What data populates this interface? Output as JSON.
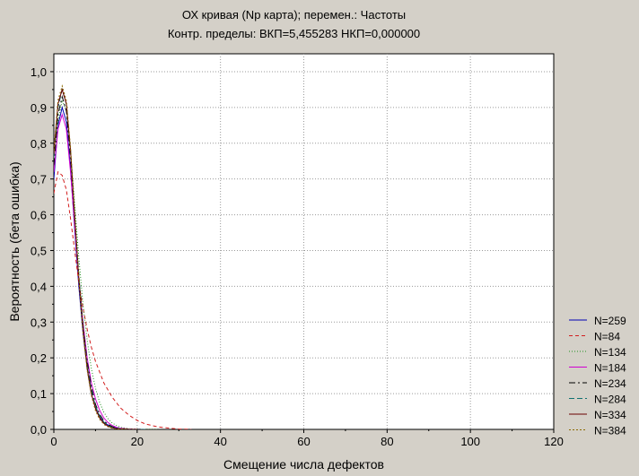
{
  "chart_data": {
    "type": "line",
    "title": "ОХ кривая (Np карта); перемен.: Частоты",
    "subtitle": "Контр. пределы: ВКП=5,455283 НКП=0,000000",
    "xlabel": "Смещение числа дефектов",
    "ylabel": "Вероятность (бета ошибка)",
    "xlim": [
      0,
      120
    ],
    "ylim": [
      0,
      1.05
    ],
    "x_ticks": [
      "0",
      "20",
      "40",
      "60",
      "80",
      "100",
      "120"
    ],
    "y_ticks": [
      "0,0",
      "0,1",
      "0,2",
      "0,3",
      "0,4",
      "0,5",
      "0,6",
      "0,7",
      "0,8",
      "0,9",
      "1,0"
    ],
    "grid": true,
    "legend_position": "right",
    "series": [
      {
        "name": "N=259",
        "color": "#0000b4",
        "dash": "solid",
        "x": [
          0,
          1,
          2,
          3,
          4,
          5,
          6,
          7,
          8,
          9,
          10,
          11,
          12,
          13,
          14,
          15,
          16,
          17,
          18,
          20,
          22
        ],
        "values": [
          0.7,
          0.85,
          0.9,
          0.86,
          0.73,
          0.56,
          0.4,
          0.27,
          0.17,
          0.1,
          0.06,
          0.035,
          0.02,
          0.012,
          0.007,
          0.004,
          0.002,
          0.001,
          0.0005,
          0,
          0
        ]
      },
      {
        "name": "N=84",
        "color": "#d21e1e",
        "dash": "4,3",
        "x": [
          0,
          1,
          2,
          3,
          4,
          5,
          6,
          7,
          8,
          9,
          10,
          12,
          14,
          16,
          18,
          20,
          22,
          25,
          28,
          30,
          33
        ],
        "values": [
          0.66,
          0.72,
          0.71,
          0.67,
          0.59,
          0.5,
          0.41,
          0.34,
          0.28,
          0.23,
          0.19,
          0.13,
          0.09,
          0.06,
          0.04,
          0.025,
          0.015,
          0.007,
          0.003,
          0.001,
          0
        ]
      },
      {
        "name": "N=134",
        "color": "#209020",
        "dash": "1,2",
        "x": [
          0,
          1,
          2,
          3,
          4,
          5,
          6,
          7,
          8,
          9,
          10,
          11,
          12,
          13,
          14,
          15,
          16,
          18,
          20,
          22,
          25
        ],
        "values": [
          0.72,
          0.86,
          0.92,
          0.89,
          0.78,
          0.63,
          0.48,
          0.35,
          0.25,
          0.17,
          0.115,
          0.075,
          0.048,
          0.03,
          0.018,
          0.011,
          0.006,
          0.002,
          0.0008,
          0.0002,
          0
        ]
      },
      {
        "name": "N=184",
        "color": "#d000d0",
        "dash": "solid",
        "x": [
          0,
          1,
          2,
          3,
          4,
          5,
          6,
          7,
          8,
          9,
          10,
          11,
          12,
          13,
          14,
          15,
          16,
          18,
          20,
          22
        ],
        "values": [
          0.72,
          0.84,
          0.88,
          0.84,
          0.72,
          0.57,
          0.42,
          0.3,
          0.2,
          0.13,
          0.085,
          0.053,
          0.032,
          0.019,
          0.011,
          0.006,
          0.003,
          0.001,
          0.0003,
          0
        ]
      },
      {
        "name": "N=234",
        "color": "#000000",
        "dash": "7,3,2,3",
        "x": [
          0,
          1,
          2,
          3,
          4,
          5,
          6,
          7,
          8,
          9,
          10,
          11,
          12,
          13,
          14,
          15,
          16,
          18,
          20,
          22
        ],
        "values": [
          0.74,
          0.88,
          0.93,
          0.89,
          0.76,
          0.59,
          0.43,
          0.29,
          0.19,
          0.12,
          0.07,
          0.042,
          0.024,
          0.014,
          0.008,
          0.004,
          0.002,
          0.0006,
          0.0001,
          0
        ]
      },
      {
        "name": "N=284",
        "color": "#107070",
        "dash": "6,3",
        "x": [
          0,
          1,
          2,
          3,
          4,
          5,
          6,
          7,
          8,
          9,
          10,
          11,
          12,
          13,
          14,
          15,
          16,
          18,
          20,
          22
        ],
        "values": [
          0.76,
          0.9,
          0.95,
          0.91,
          0.78,
          0.6,
          0.43,
          0.29,
          0.18,
          0.11,
          0.065,
          0.037,
          0.02,
          0.011,
          0.006,
          0.003,
          0.0015,
          0.0004,
          0.0001,
          0
        ]
      },
      {
        "name": "N=334",
        "color": "#6a0000",
        "dash": "solid",
        "x": [
          0,
          1,
          2,
          3,
          4,
          5,
          6,
          7,
          8,
          9,
          10,
          11,
          12,
          13,
          14,
          15,
          16,
          18,
          20
        ],
        "values": [
          0.77,
          0.91,
          0.95,
          0.91,
          0.78,
          0.6,
          0.42,
          0.28,
          0.17,
          0.1,
          0.058,
          0.032,
          0.017,
          0.009,
          0.0045,
          0.002,
          0.001,
          0.0002,
          0
        ]
      },
      {
        "name": "N=384",
        "color": "#8a6a00",
        "dash": "2,2",
        "x": [
          0,
          1,
          2,
          3,
          4,
          5,
          6,
          7,
          8,
          9,
          10,
          11,
          12,
          13,
          14,
          15,
          16,
          18,
          20
        ],
        "values": [
          0.78,
          0.92,
          0.96,
          0.92,
          0.79,
          0.6,
          0.42,
          0.27,
          0.165,
          0.095,
          0.052,
          0.028,
          0.014,
          0.007,
          0.0035,
          0.0016,
          0.0007,
          0.0001,
          0
        ]
      }
    ]
  }
}
